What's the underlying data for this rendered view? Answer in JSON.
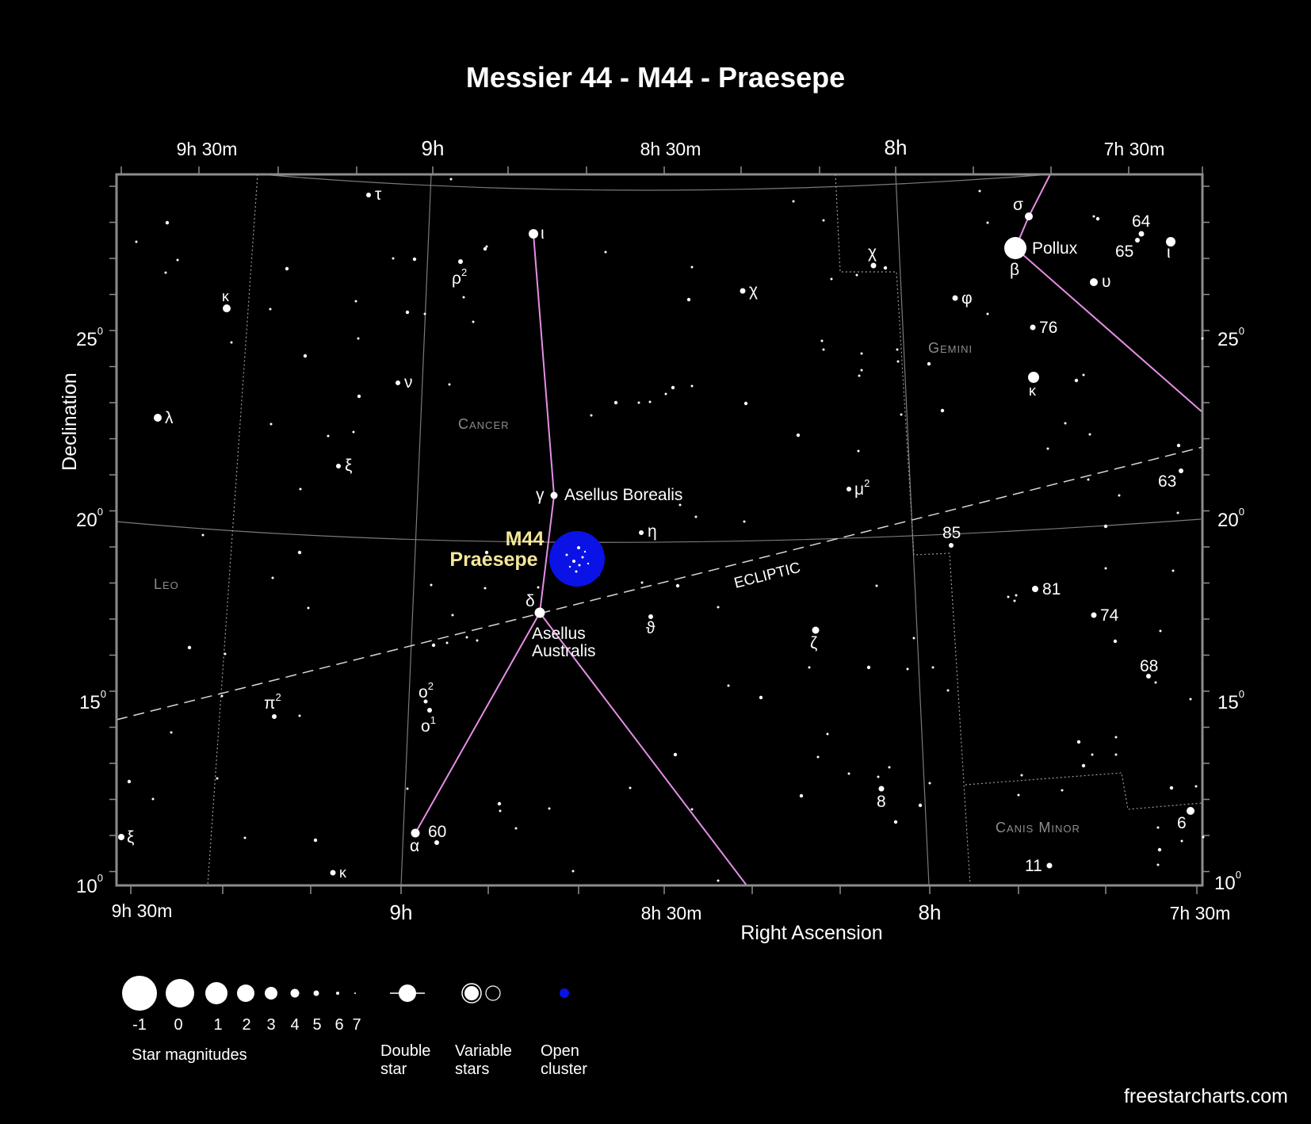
{
  "title": "Messier 44 - M44 - Praesepe",
  "axes": {
    "xlabel": "Right Ascension",
    "ylabel": "Declination",
    "ra_top": [
      "9h 30m",
      "9h",
      "8h 30m",
      "8h",
      "7h 30m"
    ],
    "ra_bottom": [
      "9h 30m",
      "9h",
      "8h 30m",
      "8h",
      "7h 30m"
    ],
    "dec": [
      {
        "value": "25",
        "sup": "0"
      },
      {
        "value": "20",
        "sup": "0"
      },
      {
        "value": "15",
        "sup": "0"
      },
      {
        "value": "10",
        "sup": "0"
      }
    ]
  },
  "constellations": [
    "Cancer",
    "Gemini",
    "Leo",
    "Canis Minor"
  ],
  "ecliptic_label": "ECLIPTIC",
  "cluster": {
    "name1": "M44",
    "name2": "Praesepe",
    "color": "#0a12e6"
  },
  "star_labels": {
    "tau": "τ",
    "iota_cnc": "ι",
    "rho2": "ρ",
    "rho2_sup": "2",
    "kappa_leo_n": "κ",
    "chi_cnc": "χ",
    "chi_gem": "χ",
    "sigma": "σ",
    "pollux": "Pollux",
    "beta": "β",
    "n64": "64",
    "n65": "65",
    "iota_gem": "ι",
    "upsilon": "υ",
    "phi": "φ",
    "n76": "76",
    "kappa_gem": "κ",
    "nu": "ν",
    "lambda": "λ",
    "xi_cnc": "ξ",
    "gamma": "γ",
    "asellus_b": "Asellus Borealis",
    "mu2": "μ",
    "mu2_sup": "2",
    "n63": "63",
    "eta": "η",
    "n85": "85",
    "delta": "δ",
    "asellus_a1": "Asellus",
    "asellus_a2": "Australis",
    "theta": "ϑ",
    "zeta": "ζ",
    "n81": "81",
    "n74": "74",
    "n68": "68",
    "pi2": "π",
    "pi2_sup": "2",
    "o2": "o",
    "o2_sup": "2",
    "o1": "o",
    "o1_sup": "1",
    "xi_leo": "ξ",
    "alpha": "α",
    "n60": "60",
    "kappa_cnc_s": "κ",
    "n8": "8",
    "n6": "6",
    "n11": "11"
  },
  "legend": {
    "magnitudes": [
      "-1",
      "0",
      "1",
      "2",
      "3",
      "4",
      "5",
      "6",
      "7"
    ],
    "magnitudes_label": "Star magnitudes",
    "double_star": [
      "Double",
      "star"
    ],
    "variable_stars": [
      "Variable",
      "stars"
    ],
    "open_cluster": [
      "Open",
      "cluster"
    ]
  },
  "colors": {
    "constellation_line": "#e48ee4",
    "grid": "#8a8a8a",
    "frame": "#8c8c8c"
  },
  "credit": "freestarcharts.com"
}
